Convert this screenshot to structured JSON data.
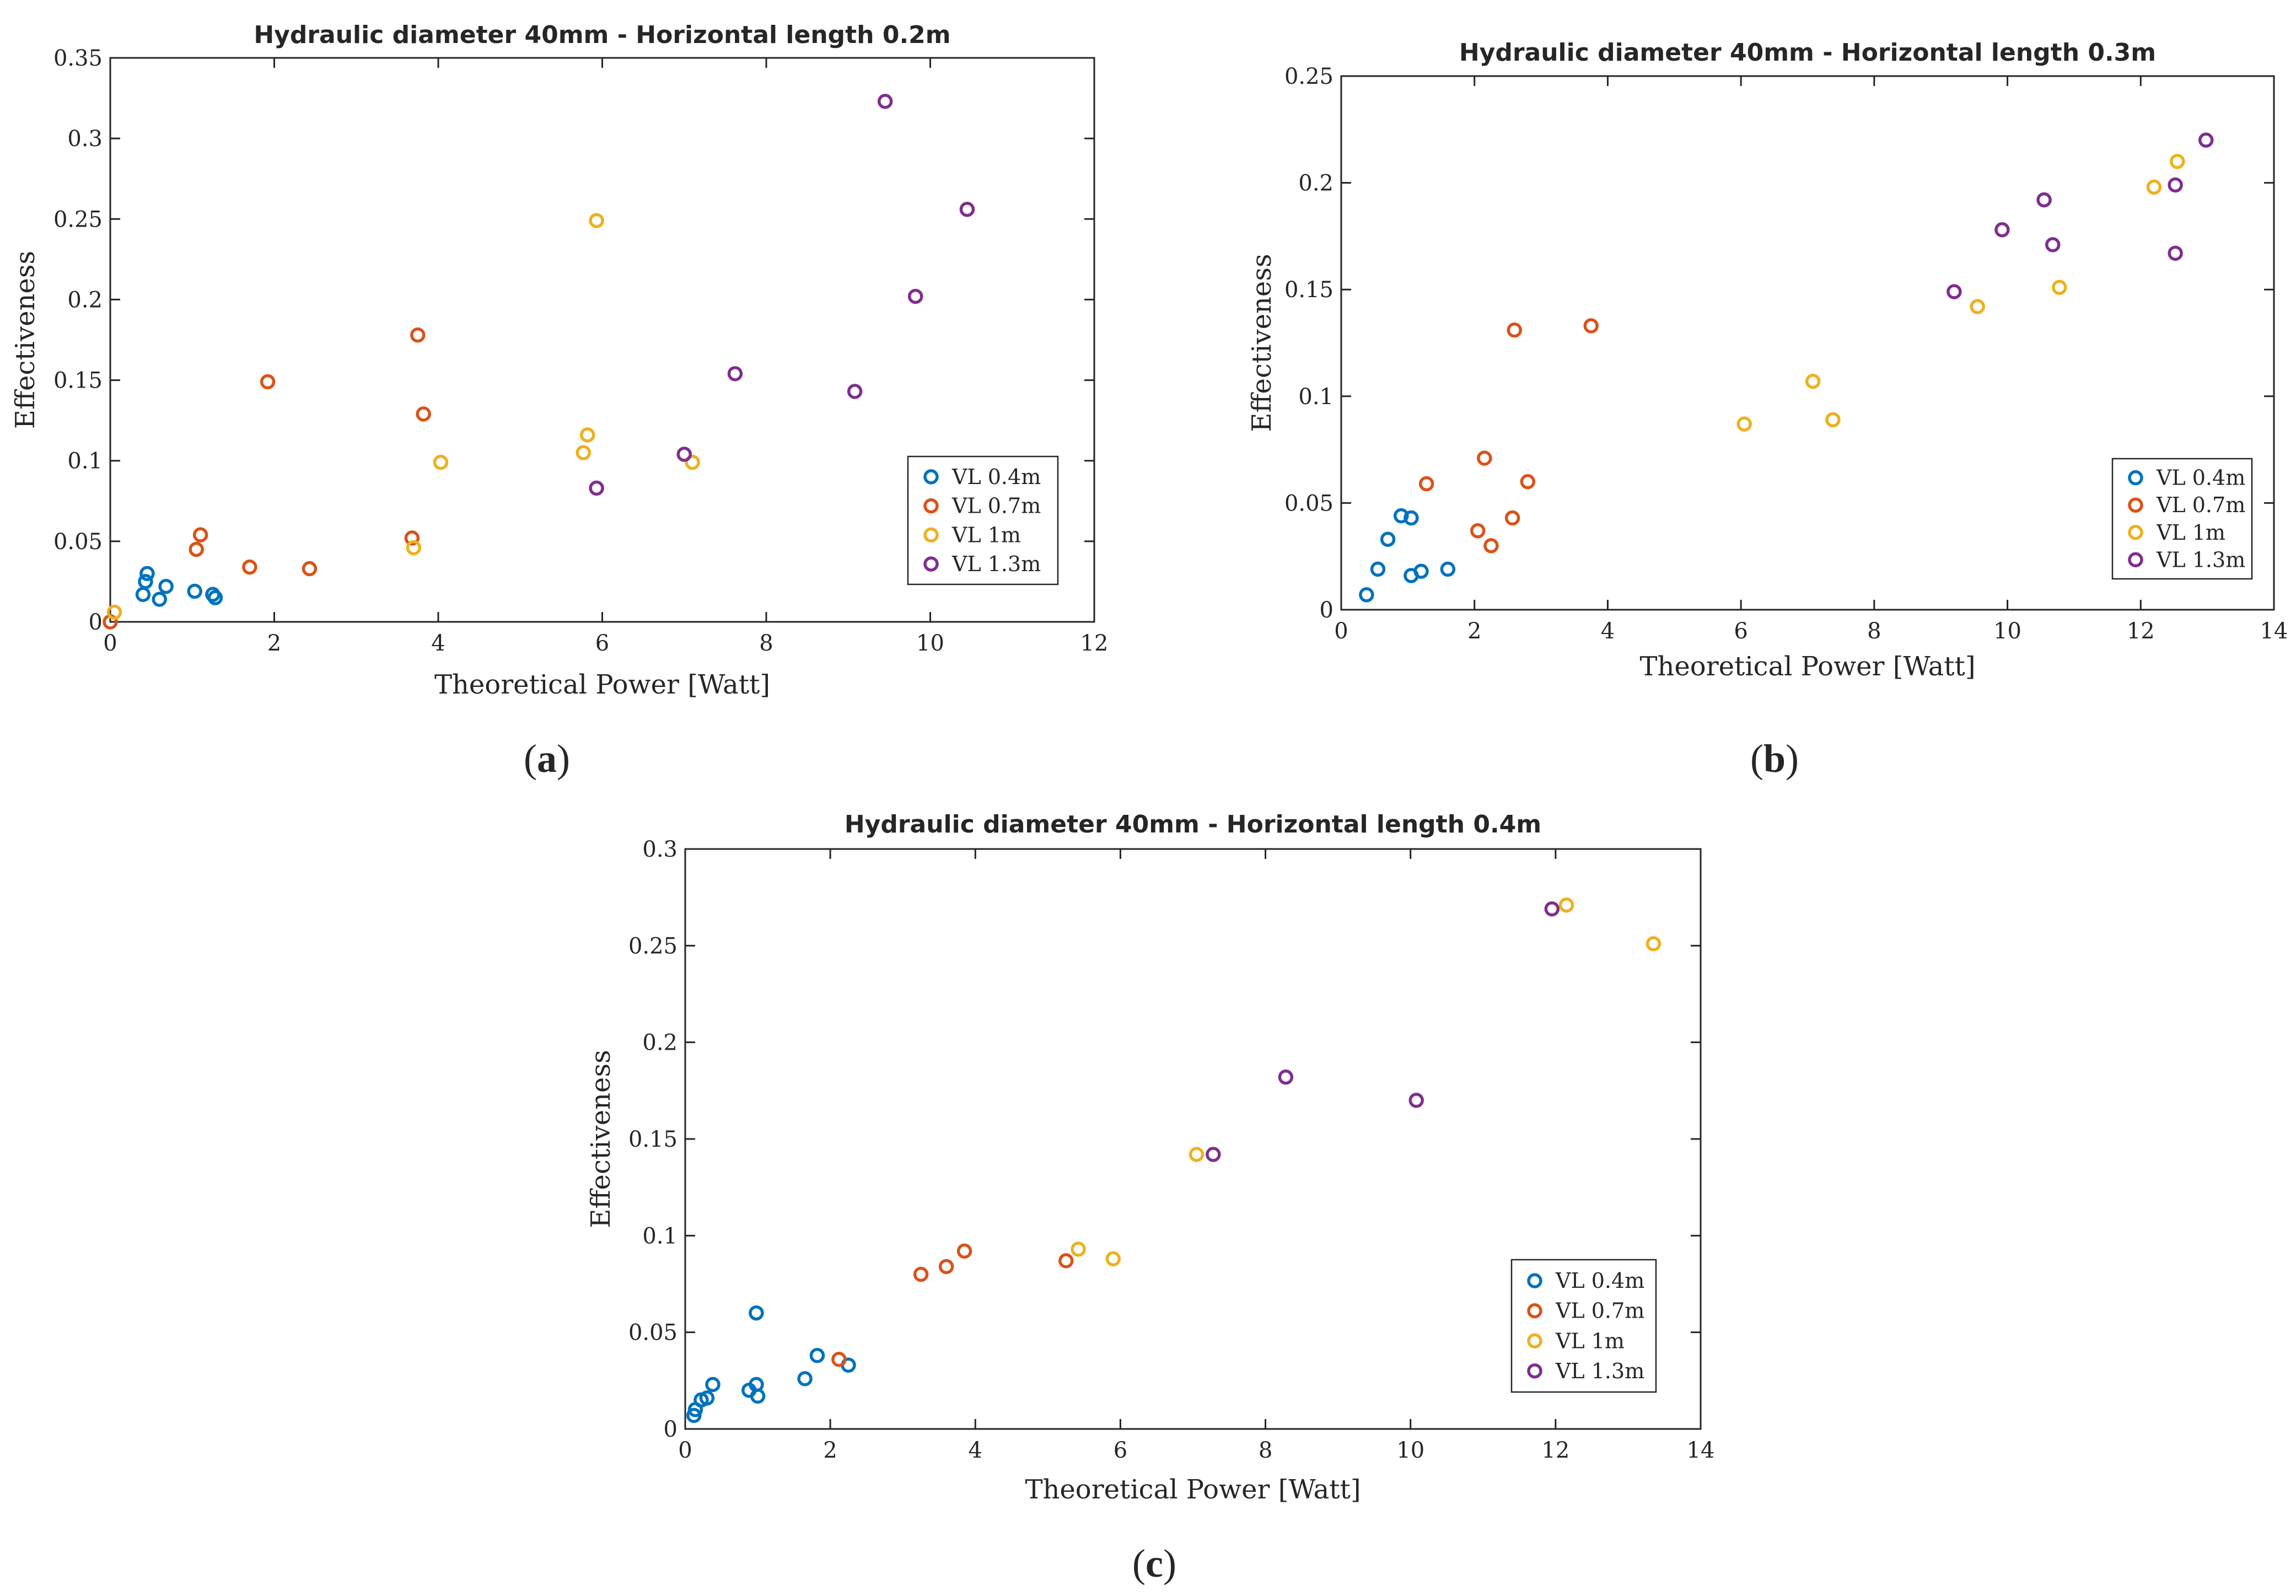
{
  "chart_data": [
    {
      "id": "a",
      "type": "scatter",
      "title": "Hydraulic diameter 40mm - Horizontal length 0.2m",
      "xlabel": "Theoretical Power [Watt]",
      "ylabel": "Effectiveness",
      "xlim": [
        0,
        12
      ],
      "ylim": [
        0,
        0.35
      ],
      "xticks": [
        0,
        2,
        4,
        6,
        8,
        10,
        12
      ],
      "yticks": [
        0,
        0.05,
        0.1,
        0.15,
        0.2,
        0.25,
        0.3,
        0.35
      ],
      "xtick_labels": [
        "0",
        "2",
        "4",
        "6",
        "8",
        "10",
        "12"
      ],
      "ytick_labels": [
        "0",
        "0.05",
        "0.1",
        "0.15",
        "0.2",
        "0.25",
        "0.3",
        "0.35"
      ],
      "panel_label": "a",
      "legend_position": "lower-right",
      "series": [
        {
          "name": "VL 0.4m",
          "color": "#0072BD",
          "points": [
            [
              0.4,
              0.017
            ],
            [
              0.43,
              0.025
            ],
            [
              0.45,
              0.03
            ],
            [
              0.6,
              0.014
            ],
            [
              0.68,
              0.022
            ],
            [
              1.03,
              0.019
            ],
            [
              1.25,
              0.017
            ],
            [
              1.28,
              0.015
            ]
          ]
        },
        {
          "name": "VL 0.7m",
          "color": "#D95319",
          "points": [
            [
              0.0,
              0.0
            ],
            [
              1.05,
              0.045
            ],
            [
              1.1,
              0.054
            ],
            [
              1.7,
              0.034
            ],
            [
              1.92,
              0.149
            ],
            [
              2.43,
              0.033
            ],
            [
              3.68,
              0.052
            ],
            [
              3.75,
              0.178
            ],
            [
              3.82,
              0.129
            ]
          ]
        },
        {
          "name": "VL 1m",
          "color": "#EDB120",
          "points": [
            [
              0.05,
              0.006
            ],
            [
              3.7,
              0.046
            ],
            [
              4.03,
              0.099
            ],
            [
              5.77,
              0.105
            ],
            [
              5.82,
              0.116
            ],
            [
              5.93,
              0.249
            ],
            [
              7.1,
              0.099
            ]
          ]
        },
        {
          "name": "VL 1.3m",
          "color": "#7E2F8E",
          "points": [
            [
              5.93,
              0.083
            ],
            [
              7.0,
              0.104
            ],
            [
              7.62,
              0.154
            ],
            [
              9.08,
              0.143
            ],
            [
              9.45,
              0.323
            ],
            [
              9.82,
              0.202
            ],
            [
              10.45,
              0.256
            ]
          ]
        }
      ]
    },
    {
      "id": "b",
      "type": "scatter",
      "title": "Hydraulic diameter 40mm - Horizontal length 0.3m",
      "xlabel": "Theoretical Power [Watt]",
      "ylabel": "Effectiveness",
      "xlim": [
        0,
        14
      ],
      "ylim": [
        0,
        0.25
      ],
      "xticks": [
        0,
        2,
        4,
        6,
        8,
        10,
        12,
        14
      ],
      "yticks": [
        0,
        0.05,
        0.1,
        0.15,
        0.2,
        0.25
      ],
      "xtick_labels": [
        "0",
        "2",
        "4",
        "6",
        "8",
        "10",
        "12",
        "14"
      ],
      "ytick_labels": [
        "0",
        "0.05",
        "0.1",
        "0.15",
        "0.2",
        "0.25"
      ],
      "panel_label": "b",
      "legend_position": "lower-right",
      "series": [
        {
          "name": "VL 0.4m",
          "color": "#0072BD",
          "points": [
            [
              0.38,
              0.007
            ],
            [
              0.55,
              0.019
            ],
            [
              0.7,
              0.033
            ],
            [
              0.9,
              0.044
            ],
            [
              1.05,
              0.043
            ],
            [
              1.05,
              0.016
            ],
            [
              1.2,
              0.018
            ],
            [
              1.6,
              0.019
            ]
          ]
        },
        {
          "name": "VL 0.7m",
          "color": "#D95319",
          "points": [
            [
              1.28,
              0.059
            ],
            [
              2.05,
              0.037
            ],
            [
              2.15,
              0.071
            ],
            [
              2.25,
              0.03
            ],
            [
              2.57,
              0.043
            ],
            [
              2.6,
              0.131
            ],
            [
              2.8,
              0.06
            ],
            [
              3.75,
              0.133
            ]
          ]
        },
        {
          "name": "VL 1m",
          "color": "#EDB120",
          "points": [
            [
              6.05,
              0.087
            ],
            [
              7.08,
              0.107
            ],
            [
              7.38,
              0.089
            ],
            [
              9.55,
              0.142
            ],
            [
              10.78,
              0.151
            ],
            [
              12.2,
              0.198
            ],
            [
              12.55,
              0.21
            ]
          ]
        },
        {
          "name": "VL 1.3m",
          "color": "#7E2F8E",
          "points": [
            [
              9.2,
              0.149
            ],
            [
              9.92,
              0.178
            ],
            [
              10.55,
              0.192
            ],
            [
              10.68,
              0.171
            ],
            [
              12.52,
              0.199
            ],
            [
              12.52,
              0.167
            ],
            [
              12.98,
              0.22
            ]
          ]
        }
      ]
    },
    {
      "id": "c",
      "type": "scatter",
      "title": "Hydraulic diameter 40mm - Horizontal length 0.4m",
      "xlabel": "Theoretical Power [Watt]",
      "ylabel": "Effectiveness",
      "xlim": [
        0,
        14
      ],
      "ylim": [
        0,
        0.3
      ],
      "xticks": [
        0,
        2,
        4,
        6,
        8,
        10,
        12,
        14
      ],
      "yticks": [
        0,
        0.05,
        0.1,
        0.15,
        0.2,
        0.25,
        0.3
      ],
      "xtick_labels": [
        "0",
        "2",
        "4",
        "6",
        "8",
        "10",
        "12",
        "14"
      ],
      "ytick_labels": [
        "0",
        "0.05",
        "0.1",
        "0.15",
        "0.2",
        "0.25",
        "0.3"
      ],
      "panel_label": "c",
      "legend_position": "lower-right",
      "series": [
        {
          "name": "VL 0.4m",
          "color": "#0072BD",
          "points": [
            [
              0.12,
              0.007
            ],
            [
              0.14,
              0.01
            ],
            [
              0.22,
              0.015
            ],
            [
              0.3,
              0.016
            ],
            [
              0.38,
              0.023
            ],
            [
              0.88,
              0.02
            ],
            [
              0.98,
              0.023
            ],
            [
              1.0,
              0.017
            ],
            [
              0.98,
              0.06
            ],
            [
              1.65,
              0.026
            ],
            [
              1.82,
              0.038
            ],
            [
              2.25,
              0.033
            ]
          ]
        },
        {
          "name": "VL 0.7m",
          "color": "#D95319",
          "points": [
            [
              2.12,
              0.036
            ],
            [
              3.25,
              0.08
            ],
            [
              3.6,
              0.084
            ],
            [
              3.85,
              0.092
            ],
            [
              5.25,
              0.087
            ]
          ]
        },
        {
          "name": "VL 1m",
          "color": "#EDB120",
          "points": [
            [
              5.42,
              0.093
            ],
            [
              5.9,
              0.088
            ],
            [
              7.05,
              0.142
            ],
            [
              12.15,
              0.271
            ],
            [
              13.35,
              0.251
            ]
          ]
        },
        {
          "name": "VL 1.3m",
          "color": "#7E2F8E",
          "points": [
            [
              7.28,
              0.142
            ],
            [
              8.28,
              0.182
            ],
            [
              10.08,
              0.17
            ],
            [
              11.95,
              0.269
            ]
          ]
        }
      ]
    }
  ]
}
